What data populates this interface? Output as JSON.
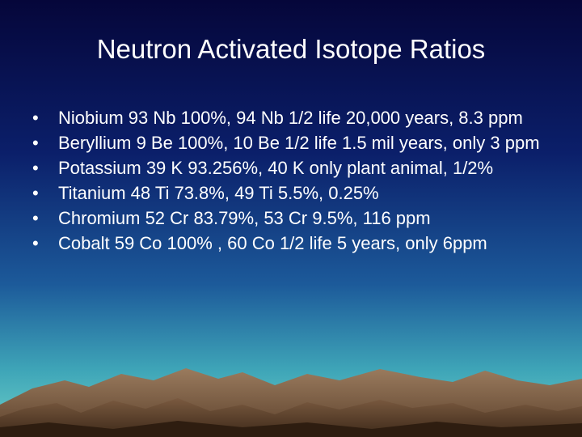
{
  "header": {
    "title": "Neutron Activated Isotope Ratios"
  },
  "bullets": [
    "Niobium 93 Nb 100%, 94 Nb 1/2 life 20,000 years, 8.3 ppm",
    "Beryllium 9 Be 100%, 10 Be 1/2 life 1.5 mil years, only 3 ppm",
    "Potassium 39 K 93.256%, 40 K only plant animal, 1/2%",
    "Titanium 48 Ti 73.8%, 49 Ti 5.5%, 0.25%",
    "Chromium 52 Cr 83.79%, 53 Cr 9.5%, 116 ppm",
    "Cobalt 59 Co 100% , 60 Co 1/2 life 5 years, only 6ppm"
  ]
}
